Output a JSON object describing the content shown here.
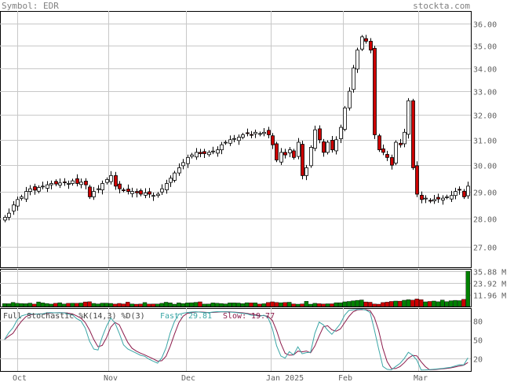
{
  "header": {
    "symbol_label": "Symbol: EDR",
    "site": "stockta.com"
  },
  "colors": {
    "up_candle": "#ffffff",
    "down_candle": "#cc0000",
    "volume_up": "#008000",
    "volume_down": "#cc0000",
    "fast_line": "#3aa6a6",
    "slow_line": "#8b1a4a",
    "grid": "#c8c8c8"
  },
  "stochastic": {
    "title": "Full Stochastic %K(14,3) %D(3)",
    "fast_label": "Fast:",
    "fast_value": "29.81",
    "slow_label": "Slow:",
    "slow_value": "19.77",
    "levels": [
      "80",
      "50",
      "20"
    ]
  },
  "chart_data": {
    "type": "candlestick",
    "price_ticks": [
      "36.00",
      "35.00",
      "34.00",
      "33.00",
      "32.00",
      "31.00",
      "30.00",
      "29.00",
      "28.00",
      "27.00"
    ],
    "volume_ticks": [
      "35.88 M",
      "23.92 M",
      "11.96 M"
    ],
    "x_labels": [
      "Oct",
      "Nov",
      "Dec",
      "Jan 2025",
      "Feb",
      "Mar"
    ],
    "ylim": [
      26.3,
      36.6
    ],
    "scale": "log",
    "grid": true,
    "closes": [
      28.05,
      28.2,
      28.5,
      28.7,
      28.8,
      29.0,
      29.1,
      29.05,
      29.15,
      29.2,
      29.25,
      29.3,
      29.28,
      29.32,
      29.35,
      29.3,
      29.4,
      29.3,
      29.35,
      29.25,
      28.8,
      29.0,
      29.1,
      29.3,
      29.45,
      29.6,
      29.2,
      29.1,
      29.05,
      29.0,
      29.0,
      28.95,
      28.9,
      28.95,
      28.9,
      28.85,
      28.9,
      29.1,
      29.3,
      29.5,
      29.7,
      29.9,
      30.1,
      30.3,
      30.4,
      30.5,
      30.45,
      30.45,
      30.5,
      30.55,
      30.6,
      30.8,
      30.9,
      31.0,
      31.05,
      31.1,
      31.2,
      31.25,
      31.2,
      31.3,
      31.25,
      31.3,
      31.2,
      30.8,
      30.2,
      30.5,
      30.4,
      30.6,
      30.3,
      30.9,
      29.6,
      29.9,
      30.7,
      31.4,
      31.0,
      30.5,
      30.9,
      30.6,
      31.0,
      31.5,
      32.3,
      33.0,
      34.0,
      34.8,
      35.4,
      35.2,
      34.8,
      31.2,
      30.6,
      30.5,
      30.3,
      30.0,
      30.9,
      30.8,
      31.3,
      32.6,
      29.9,
      28.9,
      28.7,
      28.75,
      28.65,
      28.7,
      28.72,
      28.75,
      28.8,
      28.85,
      29.0,
      29.05,
      28.8,
      29.2
    ],
    "volume_m": [
      3.0,
      2.9,
      4.2,
      3.3,
      3.1,
      2.9,
      3.5,
      2.5,
      4.7,
      3.7,
      3.1,
      2.5,
      3.3,
      3.9,
      2.6,
      3.3,
      3.4,
      3.3,
      3.6,
      4.7,
      4.9,
      3.2,
      2.7,
      3.5,
      3.5,
      3.2,
      2.5,
      3.2,
      2.7,
      4.5,
      2.7,
      2.4,
      2.6,
      4.1,
      2.5,
      2.6,
      2.6,
      3.3,
      4.4,
      3.8,
      2.4,
      3.8,
      3.1,
      3.7,
      3.9,
      4.3,
      4.8,
      2.5,
      2.6,
      3.7,
      3.4,
      3.1,
      2.7,
      3.7,
      3.7,
      3.6,
      3.0,
      3.9,
      3.7,
      3.8,
      2.5,
      2.9,
      4.2,
      4.8,
      4.2,
      3.9,
      4.2,
      4.4,
      2.7,
      2.4,
      2.7,
      5.3,
      2.4,
      3.3,
      2.9,
      2.6,
      2.8,
      2.8,
      3.9,
      3.9,
      4.8,
      5.2,
      5.8,
      6.3,
      6.7,
      4.7,
      4.4,
      2.6,
      2.4,
      4.1,
      4.5,
      5.2,
      5.6,
      5.5,
      6.4,
      7.0,
      6.5,
      7.7,
      7.0,
      4.8,
      5.2,
      5.6,
      4.9,
      6.6,
      5.0,
      5.9,
      6.3,
      6.0,
      7.3,
      35.88
    ]
  }
}
